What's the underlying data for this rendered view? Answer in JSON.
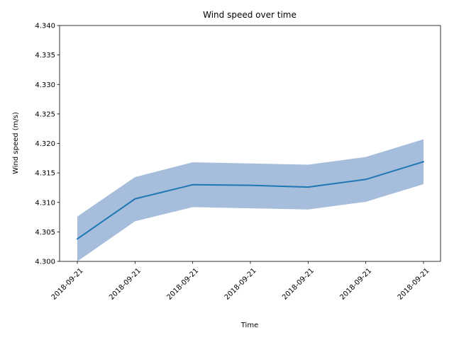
{
  "chart_data": {
    "type": "line",
    "title": "Wind speed over time",
    "xlabel": "Time",
    "ylabel": "Wind speed (m/s)",
    "x": [
      "2018-09-21",
      "2018-09-21",
      "2018-09-21",
      "2018-09-21",
      "2018-09-21",
      "2018-09-21",
      "2018-09-21"
    ],
    "x_ticks": [
      "2018-09-21",
      "2018-09-21",
      "2018-09-21",
      "2018-09-21",
      "2018-09-21",
      "2018-09-21",
      "2018-09-21"
    ],
    "ylim": [
      4.3,
      4.34
    ],
    "y_ticks": [
      "4.300",
      "4.305",
      "4.310",
      "4.315",
      "4.320",
      "4.325",
      "4.330",
      "4.335",
      "4.340"
    ],
    "grid": false,
    "series": [
      {
        "values": [
          4.3038,
          4.3106,
          4.313,
          4.3129,
          4.3126,
          4.3139,
          4.3169
        ],
        "lower": [
          4.3,
          4.3068,
          4.3092,
          4.309,
          4.3088,
          4.3101,
          4.3131
        ],
        "upper": [
          4.3076,
          4.3143,
          4.3168,
          4.3166,
          4.3164,
          4.3177,
          4.3207
        ],
        "line_color": "#1f77b4",
        "band_color": "#a6bddb"
      }
    ]
  }
}
